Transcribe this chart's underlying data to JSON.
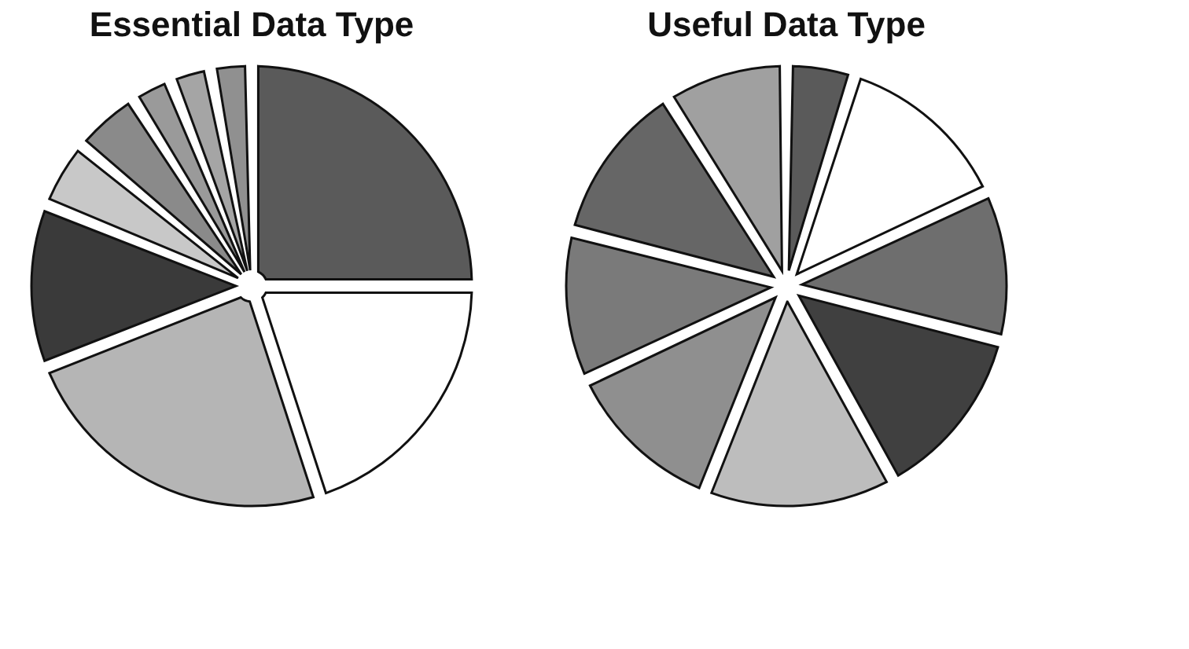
{
  "chart_data": [
    {
      "type": "pie",
      "title": "Essential Data Type",
      "categories": [
        null,
        null,
        null,
        null,
        null,
        null,
        null,
        null,
        null
      ],
      "values": [
        25,
        20,
        24,
        12,
        5,
        5,
        3,
        3,
        3
      ],
      "colors": [
        "#5a5a5a",
        "#ffffff",
        "#b5b5b5",
        "#3a3a3a",
        "#c8c8c8",
        "#8a8a8a",
        "#9a9a9a",
        "#a5a5a5",
        "#909090"
      ],
      "legend": false
    },
    {
      "type": "pie",
      "title": "Useful Data Type",
      "categories": [
        null,
        null,
        null,
        null,
        null,
        null,
        null,
        null,
        null
      ],
      "values": [
        5,
        13,
        11,
        13,
        14,
        12,
        11,
        12,
        9
      ],
      "colors": [
        "#5a5a5a",
        "#ffffff",
        "#6e6e6e",
        "#404040",
        "#bdbdbd",
        "#8f8f8f",
        "#7a7a7a",
        "#666666",
        "#a0a0a0"
      ],
      "legend": false
    }
  ]
}
